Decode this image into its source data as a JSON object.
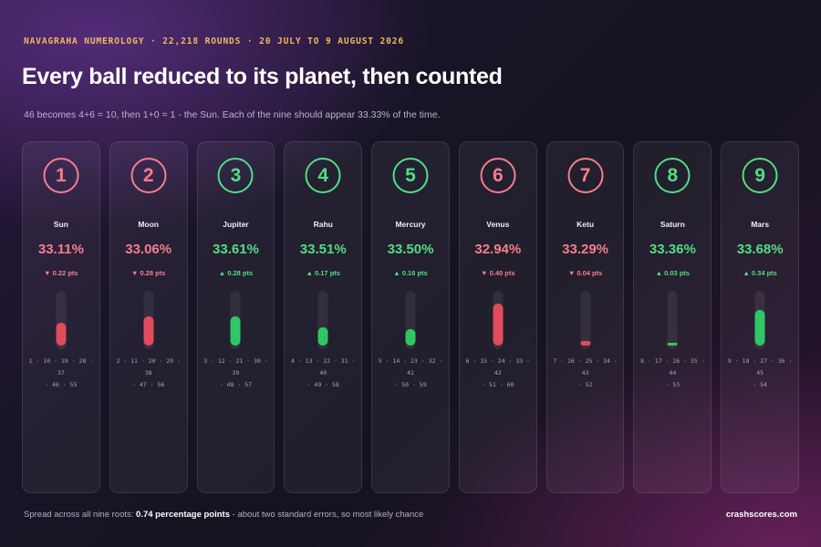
{
  "header": {
    "kicker": "NAVAGRAHA NUMEROLOGY · 22,218 ROUNDS · 20 JULY TO 9 AUGUST 2026",
    "title": "Every ball reduced to its planet, then counted",
    "subtitle": "46 becomes 4+6 = 10, then 1+0 = 1 - the Sun. Each of the nine should appear 33.33% of the time."
  },
  "colors": {
    "red": "#f57e8e",
    "green": "#52dd85",
    "bar_red": "#e24a5e",
    "bar_green": "#2fc766"
  },
  "chart_data": {
    "type": "bar",
    "expected_pct": 33.33,
    "unit": "%",
    "categories": [
      "1",
      "2",
      "3",
      "4",
      "5",
      "6",
      "7",
      "8",
      "9"
    ],
    "planets": [
      "Sun",
      "Moon",
      "Jupiter",
      "Rahu",
      "Mercury",
      "Venus",
      "Ketu",
      "Saturn",
      "Mars"
    ],
    "values": [
      33.11,
      33.06,
      33.61,
      33.51,
      33.5,
      32.94,
      33.29,
      33.36,
      33.68
    ],
    "pct_labels": [
      "33.11%",
      "33.06%",
      "33.61%",
      "33.51%",
      "33.50%",
      "32.94%",
      "33.29%",
      "33.36%",
      "33.68%"
    ],
    "deviation_pts": [
      -0.22,
      -0.28,
      0.28,
      0.17,
      0.16,
      -0.4,
      -0.04,
      0.03,
      0.34
    ],
    "deviation_labels": [
      "▼ 0.22 pts",
      "▼ 0.28 pts",
      "▲ 0.28 pts",
      "▲ 0.17 pts",
      "▲ 0.16 pts",
      "▼ 0.40 pts",
      "▼ 0.04 pts",
      "▲ 0.03 pts",
      "▲ 0.34 pts"
    ],
    "ball_numbers": [
      [
        "1 · 10 · 19 · 28 · 37",
        "· 46 · 55"
      ],
      [
        "2 · 11 · 20 · 29 · 38",
        "· 47 · 56"
      ],
      [
        "3 · 12 · 21 · 30 · 39",
        "· 48 · 57"
      ],
      [
        "4 · 13 · 22 · 31 · 40",
        "· 49 · 58"
      ],
      [
        "5 · 14 · 23 · 32 · 41",
        "· 50 · 59"
      ],
      [
        "6 · 15 · 24 · 33 · 42",
        "· 51 · 60"
      ],
      [
        "7 · 16 · 25 · 34 · 43",
        "· 52"
      ],
      [
        "8 · 17 · 26 · 35 · 44",
        "· 53"
      ],
      [
        "9 · 18 · 27 · 36 · 45",
        "· 54"
      ]
    ]
  },
  "footer": {
    "prefix": "Spread across all nine roots:",
    "highlight": "0.74 percentage points",
    "suffix": "- about two standard errors, so most likely chance",
    "brand": "crashscores.com"
  }
}
